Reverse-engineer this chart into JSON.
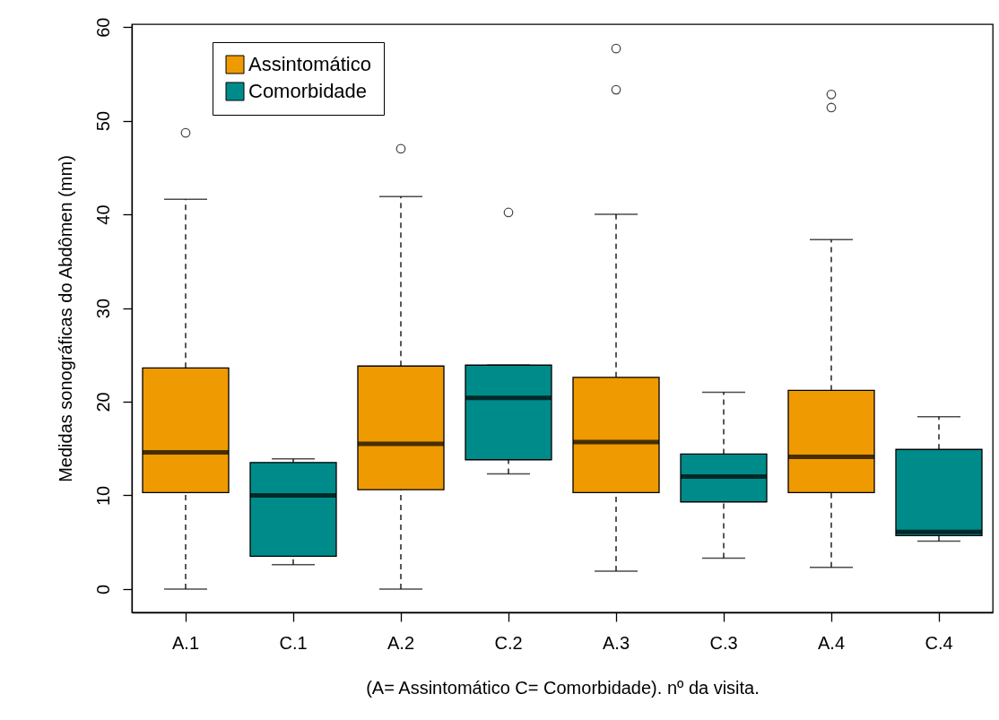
{
  "chart_data": {
    "type": "box",
    "xlabel": "(A= Assintomático C= Comorbidade). nº da visita.",
    "ylabel": "Medidas sonográficas do Abdômen (mm)",
    "categories": [
      "A.1",
      "C.1",
      "A.2",
      "C.2",
      "A.3",
      "C.3",
      "A.4",
      "C.4"
    ],
    "ylim": [
      -2.5,
      60.3
    ],
    "yticks": [
      0,
      10,
      20,
      30,
      40,
      50,
      60
    ],
    "grid": false,
    "legend": "top left",
    "series": [
      {
        "name": "Assintomático",
        "color": "#ee9a00",
        "boxes": [
          {
            "low": 0,
            "q1": 10.3,
            "median": 14.6,
            "q3": 23.6,
            "high": 41.6,
            "outliers": [
              48.7
            ]
          },
          null,
          {
            "low": 0,
            "q1": 10.6,
            "median": 15.5,
            "q3": 23.8,
            "high": 41.9,
            "outliers": [
              47.0
            ]
          },
          null,
          {
            "low": 1.9,
            "q1": 10.3,
            "median": 15.7,
            "q3": 22.6,
            "high": 40.0,
            "outliers": [
              53.3,
              57.7
            ]
          },
          null,
          {
            "low": 2.3,
            "q1": 10.3,
            "median": 14.1,
            "q3": 21.2,
            "high": 37.3,
            "outliers": [
              51.4,
              52.8
            ]
          },
          null
        ]
      },
      {
        "name": "Comorbidade",
        "color": "#008b8b",
        "boxes": [
          null,
          {
            "low": 2.6,
            "q1": 3.5,
            "median": 10.0,
            "q3": 13.5,
            "high": 13.9
          },
          null,
          {
            "low": 12.3,
            "q1": 13.8,
            "median": 20.4,
            "q3": 23.9,
            "high": 23.9,
            "outliers": [
              40.2
            ]
          },
          null,
          {
            "low": 3.3,
            "q1": 9.3,
            "median": 12.0,
            "q3": 14.4,
            "high": 21.0
          },
          null,
          {
            "low": 5.1,
            "q1": 5.7,
            "median": 6.1,
            "q3": 14.9,
            "high": 18.4
          }
        ]
      }
    ]
  }
}
